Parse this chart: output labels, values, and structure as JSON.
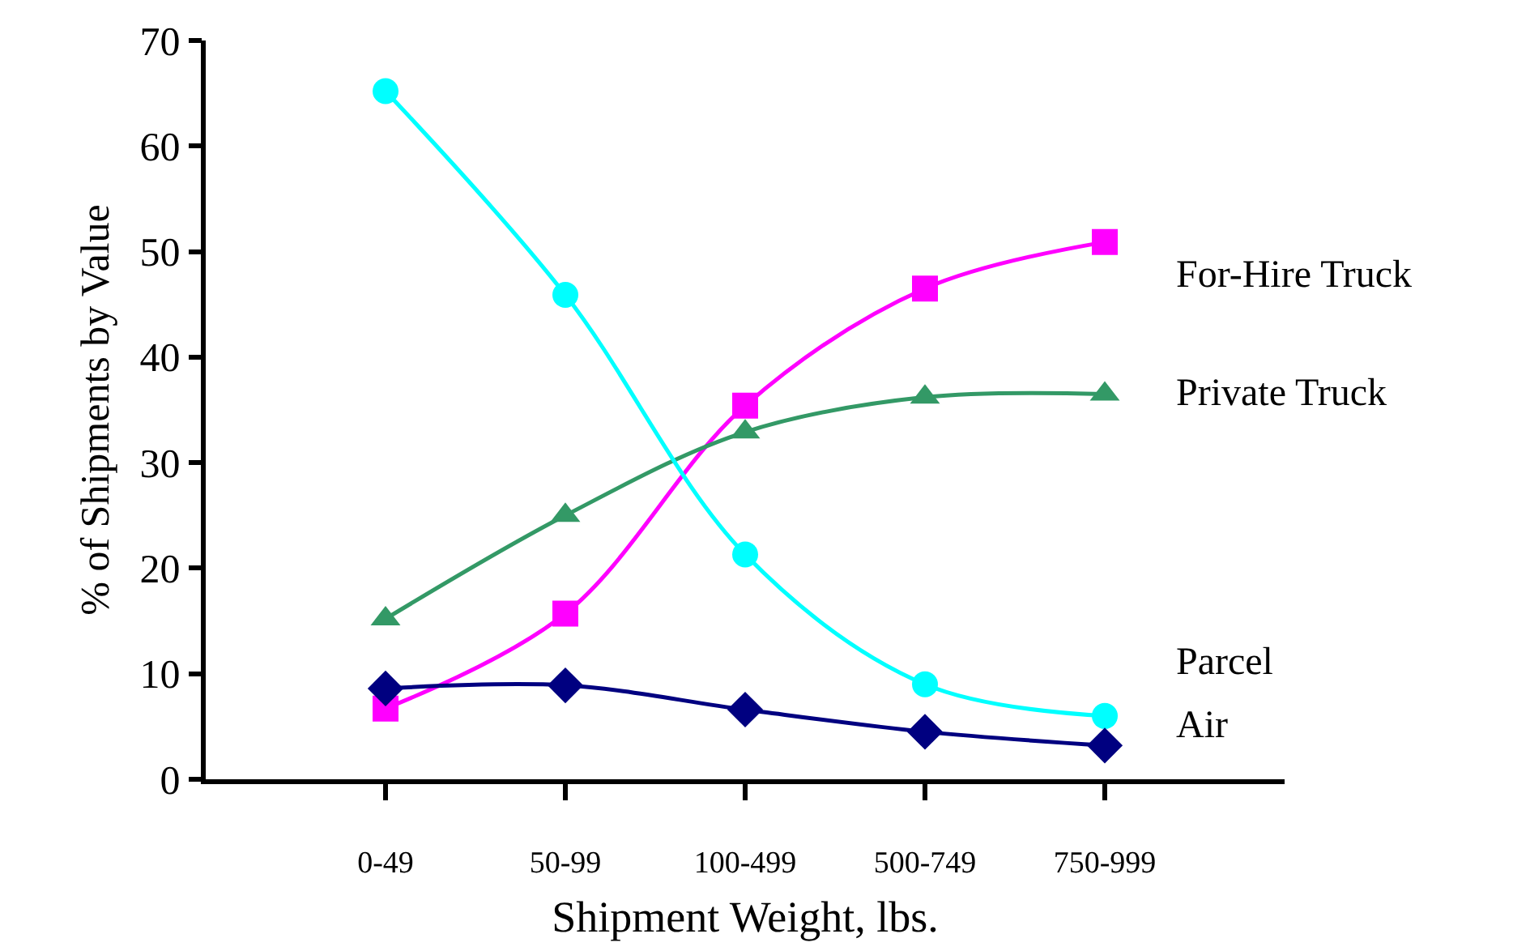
{
  "chart_data": {
    "type": "line",
    "xlabel": "Shipment Weight, lbs.",
    "ylabel": "% of Shipments by Value",
    "categories": [
      "0-49",
      "50-99",
      "100-499",
      "500-749",
      "750-999"
    ],
    "series": [
      {
        "name": "For-Hire Truck",
        "color": "#ff00ff",
        "marker": "square",
        "values": [
          6.7,
          15.7,
          35.4,
          46.5,
          50.9
        ]
      },
      {
        "name": "Private Truck",
        "color": "#339966",
        "marker": "triangle",
        "values": [
          15.2,
          25.0,
          32.9,
          36.2,
          36.5
        ]
      },
      {
        "name": "Parcel",
        "color": "#00ffff",
        "marker": "circle",
        "values": [
          65.2,
          45.9,
          21.3,
          9.0,
          6.0
        ]
      },
      {
        "name": "Air",
        "color": "#000080",
        "marker": "diamond",
        "values": [
          8.6,
          8.9,
          6.6,
          4.5,
          3.2
        ]
      }
    ],
    "ylim": [
      0,
      70
    ],
    "yticks": [
      0,
      10,
      20,
      30,
      40,
      50,
      60,
      70
    ],
    "legend": false
  }
}
